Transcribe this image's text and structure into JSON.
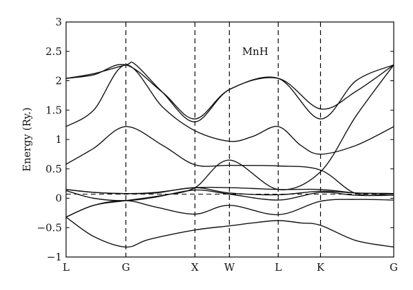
{
  "chart_data": {
    "type": "line",
    "title": "",
    "xlabel": "",
    "ylabel": "Energy (Ry.)",
    "annotation": "MnH",
    "ylim": [
      -1,
      3
    ],
    "y_ticks": [
      -1,
      -0.5,
      0,
      0.5,
      1,
      1.5,
      2,
      2.5,
      3
    ],
    "y_tick_labels": [
      "−1",
      "−0.5",
      "0",
      "0.5",
      "1",
      "1.5",
      "2",
      "2.5",
      "3"
    ],
    "k_points": [
      {
        "label": "L",
        "x": 0
      },
      {
        "label": "G",
        "x": 0.866
      },
      {
        "label": "X",
        "x": 1.866
      },
      {
        "label": "W",
        "x": 2.366
      },
      {
        "label": "L",
        "x": 3.073
      },
      {
        "label": "K",
        "x": 3.685
      },
      {
        "label": "G",
        "x": 4.746
      }
    ],
    "fermi_level": 0.07,
    "grid": false,
    "series": [
      {
        "x": [
          0,
          0.4,
          0.866,
          1.2,
          1.866,
          2.366,
          2.7,
          3.073,
          3.4,
          3.685,
          4.2,
          4.746
        ],
        "values": [
          -0.32,
          -0.65,
          -0.83,
          -0.7,
          -0.54,
          -0.47,
          -0.42,
          -0.38,
          -0.42,
          -0.46,
          -0.72,
          -0.83
        ]
      },
      {
        "x": [
          0,
          0.4,
          0.866,
          1.3,
          1.866,
          2.366,
          3.073,
          3.685,
          4.2,
          4.746
        ],
        "values": [
          -0.32,
          -0.12,
          -0.04,
          -0.15,
          -0.27,
          -0.12,
          -0.28,
          -0.05,
          -0.02,
          -0.03
        ]
      },
      {
        "x": [
          0,
          0.4,
          0.866,
          1.3,
          1.866,
          2.366,
          3.073,
          3.685,
          4.2,
          4.746
        ],
        "values": [
          0.13,
          0.0,
          -0.04,
          0.02,
          0.14,
          0.07,
          -0.03,
          0.1,
          0.05,
          0.05
        ]
      },
      {
        "x": [
          0,
          0.4,
          0.866,
          1.3,
          1.866,
          2.366,
          3.073,
          3.685,
          4.2,
          4.746
        ],
        "values": [
          0.15,
          0.1,
          0.08,
          0.09,
          0.18,
          0.09,
          0.06,
          0.12,
          0.09,
          0.08
        ]
      },
      {
        "x": [
          0,
          0.4,
          0.866,
          1.3,
          1.866,
          2.366,
          3.073,
          3.685,
          4.2,
          4.746
        ],
        "values": [
          0.15,
          0.1,
          0.08,
          0.1,
          0.18,
          0.18,
          0.15,
          0.15,
          0.09,
          0.08
        ]
      },
      {
        "x": [
          0,
          0.4,
          0.866,
          1.4,
          1.866,
          2.366,
          3.073,
          3.685,
          4.2,
          4.746
        ],
        "values": [
          0.58,
          0.85,
          1.22,
          0.9,
          0.57,
          0.56,
          0.55,
          0.48,
          0.08,
          0.08
        ]
      },
      {
        "x": [
          0,
          0.4,
          0.866,
          1.4,
          1.866,
          2.366,
          2.7,
          3.073,
          3.4,
          3.685,
          4.2,
          4.746
        ],
        "values": [
          1.22,
          1.5,
          2.27,
          1.55,
          1.15,
          0.97,
          1.05,
          1.22,
          0.9,
          0.75,
          0.9,
          1.22
        ]
      },
      {
        "x": [
          0,
          0.4,
          0.866,
          1.4,
          1.866,
          2.366,
          3.073,
          3.685,
          4.2,
          4.746
        ],
        "values": [
          2.04,
          2.1,
          2.27,
          1.8,
          1.35,
          1.85,
          2.04,
          1.35,
          2.0,
          2.27
        ]
      },
      {
        "x": [
          0,
          0.4,
          0.866,
          1.0,
          1.4,
          1.866,
          2.366,
          3.073,
          3.685,
          4.2,
          4.746
        ],
        "values": [
          2.04,
          2.12,
          2.27,
          2.28,
          1.8,
          1.3,
          1.85,
          2.04,
          1.52,
          1.82,
          2.27
        ]
      },
      {
        "x": [
          0,
          0.4,
          0.866,
          1.4,
          1.866,
          2.366,
          3.073,
          3.685,
          4.2,
          4.746
        ],
        "values": [
          -0.32,
          -0.12,
          -0.04,
          0.05,
          0.18,
          0.65,
          0.15,
          0.45,
          1.4,
          2.27
        ]
      }
    ]
  }
}
